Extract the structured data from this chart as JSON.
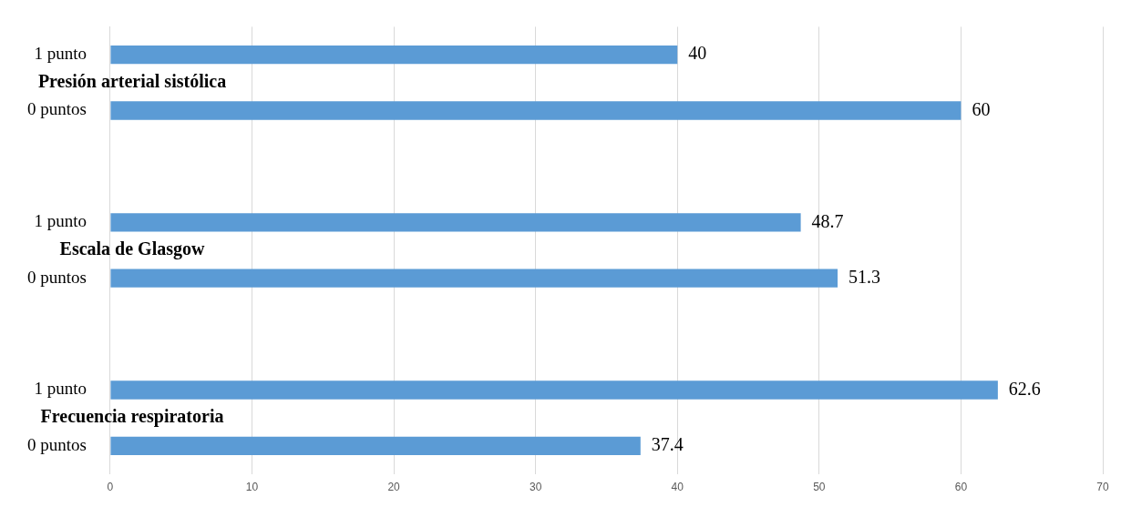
{
  "chart_data": {
    "type": "bar",
    "orientation": "horizontal",
    "categories": [
      "1 punto",
      "0 puntos",
      null,
      "1 punto",
      "0 puntos",
      null,
      "1 punto",
      "0 puntos"
    ],
    "values": [
      40,
      60,
      null,
      48.7,
      51.3,
      null,
      62.6,
      37.4
    ],
    "color": "#5b9bd5",
    "xlim": [
      0,
      70
    ],
    "xticks": [
      0,
      10,
      20,
      30,
      40,
      50,
      60,
      70
    ],
    "grid": "x",
    "data_labels": true,
    "legend": false,
    "annotations": [
      "Presión arterial sistólica",
      "Escala de Glasgow",
      "Frecuencia respiratoria"
    ]
  }
}
